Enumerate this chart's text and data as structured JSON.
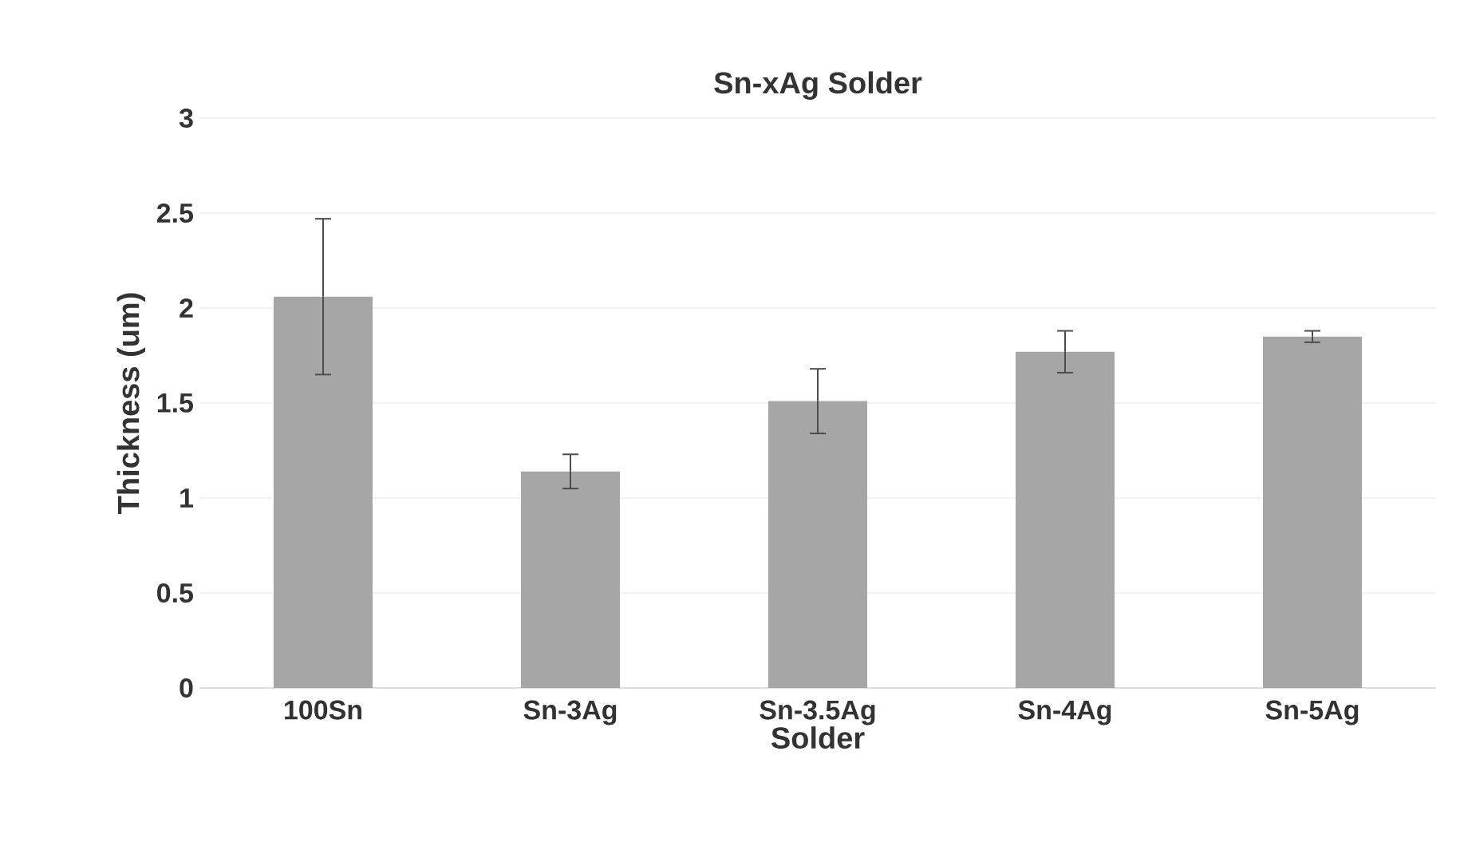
{
  "chart_data": {
    "type": "bar",
    "title": "Sn-xAg Solder",
    "xlabel": "Solder",
    "ylabel": "Thickness (um)",
    "categories": [
      "100Sn",
      "Sn-3Ag",
      "Sn-3.5Ag",
      "Sn-4Ag",
      "Sn-5Ag"
    ],
    "values": [
      2.06,
      1.14,
      1.51,
      1.77,
      1.85
    ],
    "errors": [
      0.41,
      0.09,
      0.17,
      0.11,
      0.03
    ],
    "color": "#a6a6a6",
    "ylim": [
      0,
      3
    ],
    "yticks": [
      0,
      0.5,
      1,
      1.5,
      2,
      2.5,
      3
    ],
    "grid": "y"
  }
}
